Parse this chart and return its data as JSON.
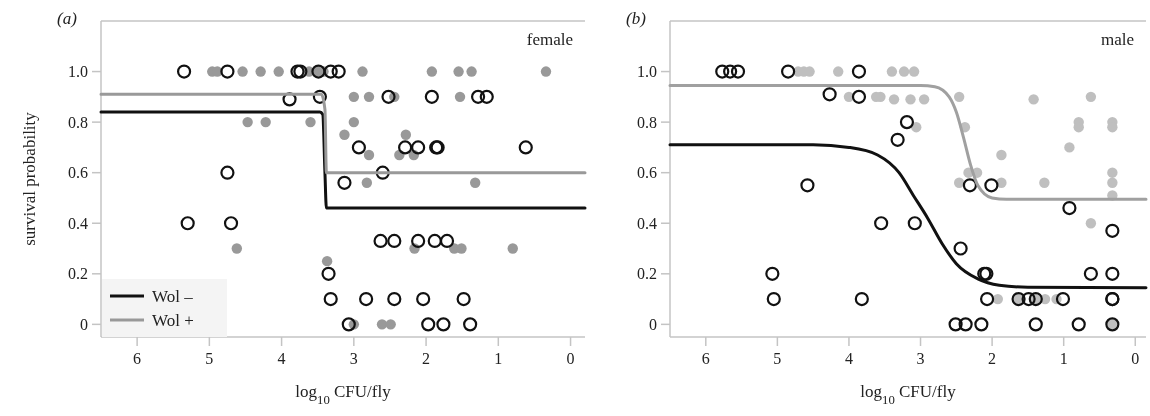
{
  "chart_data": [
    {
      "type": "scatter",
      "title": "(a)",
      "xlabel": "log$_{10}$ CFU/fly",
      "ylabel": "survival probability",
      "annotations": [
        "female"
      ],
      "xlim": [
        6.5,
        -0.2
      ],
      "xticks": [
        6,
        5,
        4,
        3,
        2,
        1,
        0
      ],
      "ylim": [
        -0.05,
        1.2
      ],
      "yticks": [
        0,
        {
          "value": 0.2,
          "label": "0.2"
        },
        {
          "value": 0.4,
          "label": "0.4"
        },
        {
          "value": 0.6,
          "label": "0.6"
        },
        {
          "value": 0.8,
          "label": "0.8"
        },
        {
          "value": 1,
          "label": "1.0"
        }
      ],
      "grid": false,
      "legend": "bottom left",
      "series": [
        {
          "marker": "circle",
          "color": "#999999",
          "x": [
            4.96,
            4.89,
            4.54,
            4.29,
            4.04,
            3.62,
            3.5,
            3.42,
            2.88,
            1.92,
            1.55,
            1.37,
            0.34,
            3.0,
            2.79,
            2.44,
            1.53,
            4.47,
            4.22,
            3.6,
            3.0,
            3.13,
            2.28,
            2.79,
            2.37,
            2.17,
            2.82,
            1.32,
            4.62,
            2.16,
            1.61,
            1.51,
            0.8,
            3.37,
            3.0,
            2.61,
            2.49
          ],
          "values": [
            1,
            1,
            1,
            1,
            1,
            1,
            1,
            1,
            1,
            1,
            1,
            1,
            1,
            0.9,
            0.9,
            0.9,
            0.9,
            0.8,
            0.8,
            0.8,
            0.8,
            0.75,
            0.75,
            0.67,
            0.67,
            0.67,
            0.56,
            0.56,
            0.3,
            0.3,
            0.3,
            0.3,
            0.3,
            0.25,
            0,
            0,
            0
          ]
        },
        {
          "marker": "circle",
          "color": "#111111",
          "x": [
            5.35,
            4.75,
            3.78,
            3.74,
            3.49,
            3.32,
            3.21,
            3.89,
            3.47,
            2.52,
            1.92,
            1.28,
            1.16,
            2.93,
            2.29,
            2.11,
            1.86,
            1.84,
            0.62,
            4.75,
            2.6,
            3.13,
            5.3,
            4.7,
            2.63,
            2.44,
            2.11,
            1.88,
            1.71,
            3.35,
            3.32,
            2.83,
            2.44,
            2.04,
            1.48,
            3.07,
            1.97,
            1.76,
            1.39
          ],
          "values": [
            1,
            1,
            1,
            1,
            1,
            1,
            1,
            0.89,
            0.9,
            0.9,
            0.9,
            0.9,
            0.9,
            0.7,
            0.7,
            0.7,
            0.7,
            0.7,
            0.7,
            0.6,
            0.6,
            0.56,
            0.4,
            0.4,
            0.33,
            0.33,
            0.33,
            0.33,
            0.33,
            0.2,
            0.1,
            0.1,
            0.1,
            0.1,
            0.1,
            0,
            0,
            0,
            0
          ]
        },
        {
          "type": "line",
          "name": "Wol –",
          "color": "#111111",
          "x": [
            6.5,
            3.47,
            3.43,
            3.4,
            3.38,
            -0.2
          ],
          "values": [
            0.84,
            0.84,
            0.83,
            0.6,
            0.46,
            0.46
          ]
        },
        {
          "type": "line",
          "name": "Wol +",
          "color": "#999999",
          "x": [
            6.5,
            3.45,
            3.4,
            3.38,
            -0.2
          ],
          "values": [
            0.91,
            0.91,
            0.85,
            0.6,
            0.6
          ]
        }
      ]
    },
    {
      "type": "scatter",
      "title": "(b)",
      "xlabel": "log$_{10}$ CFU/fly",
      "annotations": [
        "male"
      ],
      "xlim": [
        6.5,
        -0.15
      ],
      "xticks": [
        6,
        5,
        4,
        3,
        2,
        1,
        0
      ],
      "ylim": [
        -0.05,
        1.2
      ],
      "yticks": [
        0,
        {
          "value": 0.2,
          "label": "0.2"
        },
        {
          "value": 0.4,
          "label": "0.4"
        },
        {
          "value": 0.6,
          "label": "0.6"
        },
        {
          "value": 0.8,
          "label": "0.8"
        },
        {
          "value": 1,
          "label": "1.0"
        }
      ],
      "grid": false,
      "series": [
        {
          "marker": "circle",
          "color": "#bfbfbf",
          "x": [
            4.71,
            4.63,
            4.55,
            4.15,
            3.4,
            3.23,
            3.09,
            3.56,
            4.0,
            3.62,
            2.46,
            0.62,
            3.37,
            3.14,
            2.95,
            1.42,
            3.06,
            2.38,
            0.79,
            0.79,
            0.32,
            0.32,
            0.92,
            1.87,
            2.33,
            2.21,
            0.32,
            2.46,
            1.87,
            1.27,
            0.32,
            0.32,
            0.62,
            1.92,
            1.63,
            1.26,
            1.1,
            1.39,
            0.32
          ],
          "values": [
            1,
            1,
            1,
            1,
            1,
            1,
            1,
            0.9,
            0.9,
            0.9,
            0.9,
            0.9,
            0.89,
            0.89,
            0.89,
            0.89,
            0.78,
            0.78,
            0.8,
            0.78,
            0.8,
            0.78,
            0.7,
            0.67,
            0.6,
            0.6,
            0.6,
            0.56,
            0.56,
            0.56,
            0.56,
            0.51,
            0.4,
            0.1,
            0.1,
            0.1,
            0.1,
            0.1,
            0
          ]
        },
        {
          "marker": "circle",
          "color": "#111111",
          "x": [
            5.77,
            5.66,
            5.55,
            4.85,
            3.86,
            4.27,
            3.86,
            3.19,
            3.32,
            4.58,
            2.31,
            2.01,
            0.92,
            3.55,
            3.08,
            0.32,
            2.44,
            5.07,
            2.11,
            2.08,
            0.62,
            0.32,
            5.05,
            3.82,
            2.07,
            1.63,
            1.49,
            1.39,
            1.01,
            0.32,
            0.32,
            2.51,
            2.37,
            2.15,
            1.39,
            0.79,
            0.32
          ],
          "values": [
            1,
            1,
            1,
            1,
            1,
            0.91,
            0.9,
            0.8,
            0.73,
            0.55,
            0.55,
            0.55,
            0.46,
            0.4,
            0.4,
            0.37,
            0.3,
            0.2,
            0.2,
            0.2,
            0.2,
            0.2,
            0.1,
            0.1,
            0.1,
            0.1,
            0.1,
            0.1,
            0.1,
            0.1,
            0.1,
            0,
            0,
            0,
            0,
            0,
            0
          ]
        },
        {
          "type": "line",
          "color": "#111111",
          "x": [
            6.5,
            4.5,
            4.0,
            3.6,
            3.3,
            3.1,
            2.9,
            2.7,
            2.5,
            2.2,
            1.9,
            1.5,
            -0.15
          ],
          "values": [
            0.71,
            0.71,
            0.7,
            0.67,
            0.6,
            0.51,
            0.42,
            0.32,
            0.24,
            0.18,
            0.155,
            0.147,
            0.145
          ]
        },
        {
          "type": "line",
          "color": "#a0a0a0",
          "x": [
            6.5,
            3.0,
            2.8,
            2.6,
            2.5,
            2.4,
            2.3,
            2.2,
            2.0,
            1.8,
            -0.15
          ],
          "values": [
            0.945,
            0.945,
            0.94,
            0.9,
            0.84,
            0.74,
            0.63,
            0.55,
            0.5,
            0.495,
            0.495
          ]
        }
      ]
    }
  ]
}
